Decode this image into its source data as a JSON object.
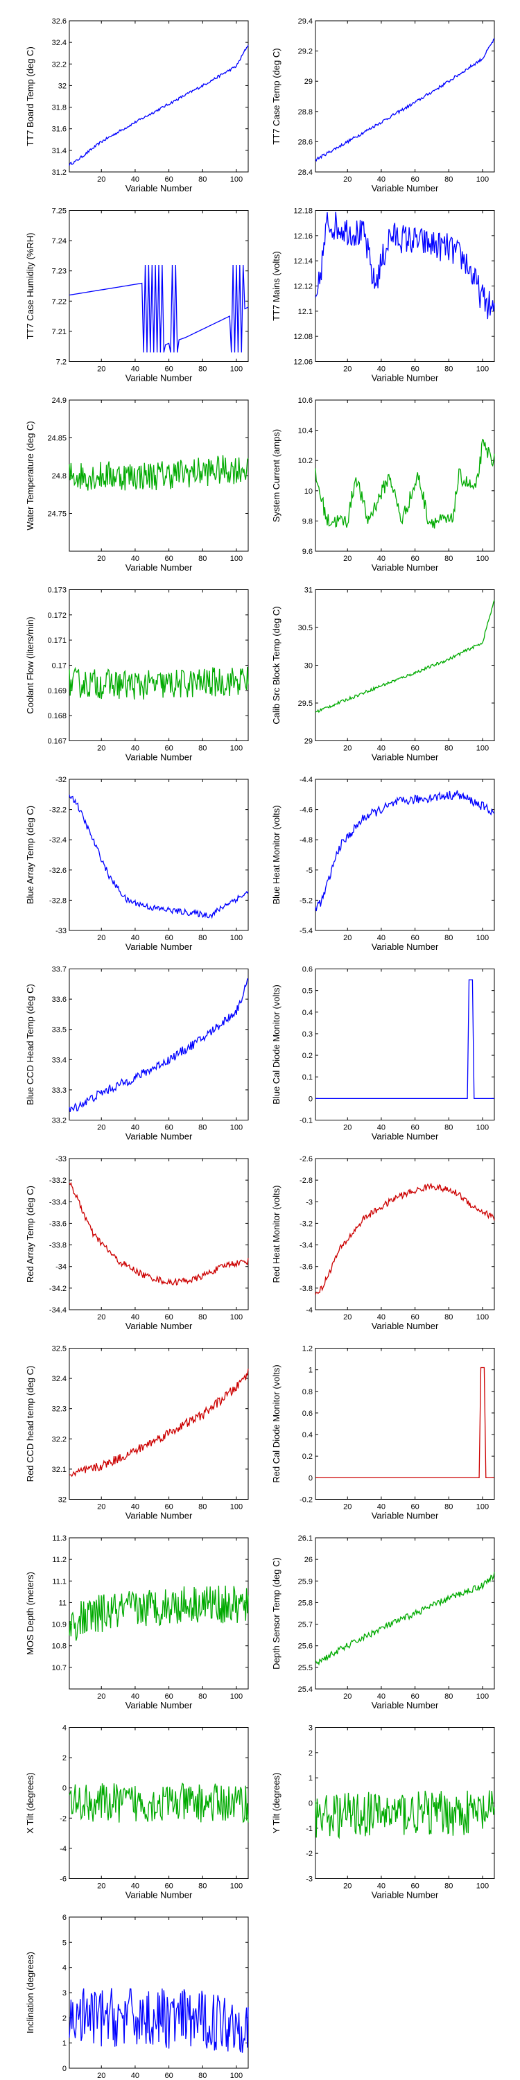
{
  "colors": {
    "blue": "#0000ff",
    "green": "#00aa00",
    "red": "#cc0000"
  },
  "chart_data": [
    {
      "type": "line",
      "ylabel": "TT7 Board Temp (deg C)",
      "xlabel": "Variable Number",
      "xlim": [
        1,
        107
      ],
      "ylim": [
        31.2,
        32.6
      ],
      "xticks": [
        20,
        40,
        60,
        80,
        100
      ],
      "yticks": [
        "31.2",
        "31.4",
        "31.6",
        "31.8",
        "32",
        "32.2",
        "32.4",
        "32.6"
      ],
      "color": "blue",
      "shape": "rampup",
      "noise": 0.012,
      "curve": [
        [
          1,
          31.27
        ],
        [
          5,
          31.3
        ],
        [
          20,
          31.48
        ],
        [
          40,
          31.66
        ],
        [
          60,
          31.83
        ],
        [
          80,
          32.0
        ],
        [
          100,
          32.18
        ],
        [
          107,
          32.38
        ]
      ]
    },
    {
      "type": "line",
      "ylabel": "TT7 Case Temp (deg C)",
      "xlabel": "Variable Number",
      "xlim": [
        1,
        107
      ],
      "ylim": [
        28.4,
        29.4
      ],
      "xticks": [
        20,
        40,
        60,
        80,
        100
      ],
      "yticks": [
        "28.4",
        "28.6",
        "28.8",
        "29",
        "29.2",
        "29.4"
      ],
      "color": "blue",
      "shape": "line",
      "noise": 0.01,
      "curve": [
        [
          1,
          28.48
        ],
        [
          20,
          28.6
        ],
        [
          40,
          28.73
        ],
        [
          60,
          28.86
        ],
        [
          80,
          29.0
        ],
        [
          100,
          29.15
        ],
        [
          107,
          29.28
        ]
      ]
    },
    {
      "type": "line",
      "ylabel": "TT7 Case Humidity (%RH)",
      "xlabel": "Variable Number",
      "xlim": [
        1,
        107
      ],
      "ylim": [
        7.2,
        7.25
      ],
      "xticks": [
        20,
        40,
        60,
        80,
        100
      ],
      "yticks": [
        "7.2",
        "7.21",
        "7.22",
        "7.23",
        "7.24",
        "7.25"
      ],
      "color": "blue",
      "shape": "square",
      "noise": 0,
      "curve": [
        [
          1,
          7.222
        ],
        [
          45,
          7.226
        ],
        [
          50,
          7.204
        ],
        [
          70,
          7.208
        ],
        [
          107,
          7.218
        ]
      ]
    },
    {
      "type": "line",
      "ylabel": "TT7 Mains  (volts)",
      "xlabel": "Variable Number",
      "xlim": [
        1,
        107
      ],
      "ylim": [
        12.06,
        12.18
      ],
      "xticks": [
        20,
        40,
        60,
        80,
        100
      ],
      "yticks": [
        "12.06",
        "12.08",
        "12.1",
        "12.12",
        "12.14",
        "12.16",
        "12.18"
      ],
      "color": "blue",
      "shape": "noisy",
      "noise": 0.012,
      "curve": [
        [
          1,
          12.1
        ],
        [
          8,
          12.17
        ],
        [
          30,
          12.16
        ],
        [
          36,
          12.12
        ],
        [
          45,
          12.16
        ],
        [
          80,
          12.15
        ],
        [
          90,
          12.14
        ],
        [
          100,
          12.11
        ],
        [
          107,
          12.1
        ]
      ]
    },
    {
      "type": "line",
      "ylabel": "Water Temperature (deg C)",
      "xlabel": "Variable Number",
      "xlim": [
        1,
        107
      ],
      "ylim": [
        24.7,
        24.9
      ],
      "xticks": [
        20,
        40,
        60,
        80,
        100
      ],
      "yticks": [
        "24.75",
        "24.8",
        "24.85",
        "24.9"
      ],
      "color": "green",
      "shape": "noisy",
      "noise": 0.02,
      "curve": [
        [
          1,
          24.8
        ],
        [
          50,
          24.8
        ],
        [
          107,
          24.81
        ]
      ]
    },
    {
      "type": "line",
      "ylabel": "System Current (amps)",
      "xlabel": "Variable Number",
      "xlim": [
        1,
        107
      ],
      "ylim": [
        9.6,
        10.6
      ],
      "xticks": [
        20,
        40,
        60,
        80,
        100
      ],
      "yticks": [
        "9.6",
        "9.8",
        "10",
        "10.2",
        "10.4",
        "10.6"
      ],
      "color": "green",
      "shape": "noisy",
      "noise": 0.05,
      "curve": [
        [
          1,
          10.1
        ],
        [
          8,
          9.8
        ],
        [
          20,
          9.8
        ],
        [
          25,
          10.1
        ],
        [
          32,
          9.8
        ],
        [
          45,
          10.1
        ],
        [
          52,
          9.8
        ],
        [
          62,
          10.1
        ],
        [
          68,
          9.8
        ],
        [
          82,
          9.8
        ],
        [
          86,
          10.1
        ],
        [
          96,
          10.0
        ],
        [
          100,
          10.3
        ],
        [
          107,
          10.2
        ]
      ]
    },
    {
      "type": "line",
      "ylabel": "Coolant Flow (liters/min)",
      "xlabel": "Variable Number",
      "xlim": [
        1,
        107
      ],
      "ylim": [
        0.167,
        0.173
      ],
      "xticks": [
        20,
        40,
        60,
        80,
        100
      ],
      "yticks": [
        "0.167",
        "0.168",
        "0.169",
        "0.17",
        "0.171",
        "0.172",
        "0.173"
      ],
      "color": "green",
      "shape": "noisy",
      "noise": 0.0006,
      "curve": [
        [
          1,
          0.1693
        ],
        [
          50,
          0.1692
        ],
        [
          107,
          0.1694
        ]
      ]
    },
    {
      "type": "line",
      "ylabel": "Calib Src Block Temp (deg C)",
      "xlabel": "Variable Number",
      "xlim": [
        1,
        107
      ],
      "ylim": [
        29,
        31
      ],
      "xticks": [
        20,
        40,
        60,
        80,
        100
      ],
      "yticks": [
        "29",
        "29.5",
        "30",
        "30.5",
        "31"
      ],
      "color": "green",
      "shape": "rampup",
      "noise": 0.02,
      "curve": [
        [
          1,
          29.38
        ],
        [
          20,
          29.55
        ],
        [
          40,
          29.73
        ],
        [
          60,
          29.9
        ],
        [
          80,
          30.08
        ],
        [
          100,
          30.3
        ],
        [
          103,
          30.55
        ],
        [
          107,
          30.85
        ]
      ]
    },
    {
      "type": "line",
      "ylabel": "Blue Array Temp (deg C)",
      "xlabel": "Variable Number",
      "xlim": [
        1,
        107
      ],
      "ylim": [
        -33,
        -32
      ],
      "xticks": [
        20,
        40,
        60,
        80,
        100
      ],
      "yticks": [
        "-33",
        "-32.8",
        "-32.6",
        "-32.4",
        "-32.2",
        "-32"
      ],
      "color": "blue",
      "shape": "curve",
      "noise": 0.02,
      "curve": [
        [
          1,
          -32.1
        ],
        [
          5,
          -32.15
        ],
        [
          15,
          -32.4
        ],
        [
          25,
          -32.65
        ],
        [
          35,
          -32.8
        ],
        [
          50,
          -32.85
        ],
        [
          70,
          -32.88
        ],
        [
          85,
          -32.9
        ],
        [
          95,
          -32.82
        ],
        [
          107,
          -32.75
        ]
      ]
    },
    {
      "type": "line",
      "ylabel": "Blue Heat Monitor (volts)",
      "xlabel": "Variable Number",
      "xlim": [
        1,
        107
      ],
      "ylim": [
        -5.4,
        -4.4
      ],
      "xticks": [
        20,
        40,
        60,
        80,
        100
      ],
      "yticks": [
        "-5.4",
        "-5.2",
        "-5",
        "-4.8",
        "-4.6",
        "-4.4"
      ],
      "color": "blue",
      "shape": "curve",
      "noise": 0.03,
      "curve": [
        [
          1,
          -5.25
        ],
        [
          5,
          -5.2
        ],
        [
          15,
          -4.85
        ],
        [
          30,
          -4.65
        ],
        [
          50,
          -4.55
        ],
        [
          70,
          -4.52
        ],
        [
          85,
          -4.5
        ],
        [
          95,
          -4.55
        ],
        [
          107,
          -4.62
        ]
      ]
    },
    {
      "type": "line",
      "ylabel": "Blue CCD Head Temp (deg C)",
      "xlabel": "Variable Number",
      "xlim": [
        1,
        107
      ],
      "ylim": [
        33.2,
        33.7
      ],
      "xticks": [
        20,
        40,
        60,
        80,
        100
      ],
      "yticks": [
        "33.2",
        "33.3",
        "33.4",
        "33.5",
        "33.6",
        "33.7"
      ],
      "color": "blue",
      "shape": "rampup",
      "noise": 0.015,
      "curve": [
        [
          1,
          33.23
        ],
        [
          20,
          33.29
        ],
        [
          40,
          33.34
        ],
        [
          60,
          33.4
        ],
        [
          80,
          33.47
        ],
        [
          100,
          33.56
        ],
        [
          107,
          33.66
        ]
      ]
    },
    {
      "type": "line",
      "ylabel": "Blue Cal Diode Monitor (volts)",
      "xlabel": "Variable Number",
      "xlim": [
        1,
        107
      ],
      "ylim": [
        -0.1,
        0.6
      ],
      "xticks": [
        20,
        40,
        60,
        80,
        100
      ],
      "yticks": [
        "-0.1",
        "0",
        "0.1",
        "0.2",
        "0.3",
        "0.4",
        "0.5",
        "0.6"
      ],
      "color": "blue",
      "shape": "spike",
      "noise": 0,
      "curve": [
        [
          1,
          0
        ],
        [
          91,
          0
        ],
        [
          92,
          0.55
        ],
        [
          94,
          0.55
        ],
        [
          95,
          0
        ],
        [
          107,
          0
        ]
      ]
    },
    {
      "type": "line",
      "ylabel": "Red Array Temp (deg C)",
      "xlabel": "Variable Number",
      "xlim": [
        1,
        107
      ],
      "ylim": [
        -34.4,
        -33
      ],
      "xticks": [
        20,
        40,
        60,
        80,
        100
      ],
      "yticks": [
        "-34.4",
        "-34.2",
        "-34",
        "-33.8",
        "-33.6",
        "-33.4",
        "-33.2",
        "-33"
      ],
      "color": "red",
      "shape": "curve",
      "noise": 0.03,
      "curve": [
        [
          1,
          -33.2
        ],
        [
          5,
          -33.35
        ],
        [
          15,
          -33.7
        ],
        [
          30,
          -33.95
        ],
        [
          45,
          -34.08
        ],
        [
          60,
          -34.15
        ],
        [
          75,
          -34.12
        ],
        [
          85,
          -34.05
        ],
        [
          95,
          -33.98
        ],
        [
          107,
          -33.95
        ]
      ]
    },
    {
      "type": "line",
      "ylabel": "Red Heat Monitor (volts)",
      "xlabel": "Variable Number",
      "xlim": [
        1,
        107
      ],
      "ylim": [
        -4,
        -2.6
      ],
      "xticks": [
        20,
        40,
        60,
        80,
        100
      ],
      "yticks": [
        "-4",
        "-3.8",
        "-3.6",
        "-3.4",
        "-3.2",
        "-3",
        "-2.8",
        "-2.6"
      ],
      "color": "red",
      "shape": "curve",
      "noise": 0.03,
      "curve": [
        [
          1,
          -3.85
        ],
        [
          5,
          -3.8
        ],
        [
          15,
          -3.45
        ],
        [
          30,
          -3.15
        ],
        [
          50,
          -2.95
        ],
        [
          70,
          -2.85
        ],
        [
          85,
          -2.92
        ],
        [
          95,
          -3.05
        ],
        [
          107,
          -3.15
        ]
      ]
    },
    {
      "type": "line",
      "ylabel": "Red CCD head temp (deg C)",
      "xlabel": "Variable Number",
      "xlim": [
        1,
        107
      ],
      "ylim": [
        32,
        32.5
      ],
      "xticks": [
        20,
        40,
        60,
        80,
        100
      ],
      "yticks": [
        "32",
        "32.1",
        "32.2",
        "32.3",
        "32.4",
        "32.5"
      ],
      "color": "red",
      "shape": "rampup",
      "noise": 0.015,
      "curve": [
        [
          1,
          32.08
        ],
        [
          20,
          32.11
        ],
        [
          40,
          32.16
        ],
        [
          60,
          32.22
        ],
        [
          80,
          32.28
        ],
        [
          100,
          32.37
        ],
        [
          107,
          32.42
        ]
      ]
    },
    {
      "type": "line",
      "ylabel": "Red Cal Diode Monitor (volts)",
      "xlabel": "Variable Number",
      "xlim": [
        1,
        107
      ],
      "ylim": [
        -0.2,
        1.2
      ],
      "xticks": [
        20,
        40,
        60,
        80,
        100
      ],
      "yticks": [
        "-0.2",
        "0",
        "0.2",
        "0.4",
        "0.6",
        "0.8",
        "1",
        "1.2"
      ],
      "color": "red",
      "shape": "spike",
      "noise": 0,
      "curve": [
        [
          1,
          0
        ],
        [
          98,
          0
        ],
        [
          99,
          1.02
        ],
        [
          101,
          1.02
        ],
        [
          102,
          0
        ],
        [
          107,
          0
        ]
      ]
    },
    {
      "type": "line",
      "ylabel": "MOS Depth  (meters)",
      "xlabel": "Variable Number",
      "xlim": [
        1,
        107
      ],
      "ylim": [
        10.6,
        11.3
      ],
      "xticks": [
        20,
        40,
        60,
        80,
        100
      ],
      "yticks": [
        "10.7",
        "10.8",
        "10.9",
        "11",
        "11.1",
        "11.2",
        "11.3"
      ],
      "color": "green",
      "shape": "noisy",
      "noise": 0.09,
      "curve": [
        [
          1,
          10.9
        ],
        [
          20,
          10.95
        ],
        [
          50,
          10.98
        ],
        [
          80,
          11.0
        ],
        [
          107,
          10.98
        ]
      ]
    },
    {
      "type": "line",
      "ylabel": "Depth Sensor Temp (deg C)",
      "xlabel": "Variable Number",
      "xlim": [
        1,
        107
      ],
      "ylim": [
        25.4,
        26.1
      ],
      "xticks": [
        20,
        40,
        60,
        80,
        100
      ],
      "yticks": [
        "25.4",
        "25.5",
        "25.6",
        "25.7",
        "25.8",
        "25.9",
        "26",
        "26.1"
      ],
      "color": "green",
      "shape": "line",
      "noise": 0.015,
      "curve": [
        [
          1,
          25.52
        ],
        [
          20,
          25.6
        ],
        [
          40,
          25.68
        ],
        [
          60,
          25.75
        ],
        [
          80,
          25.82
        ],
        [
          100,
          25.88
        ],
        [
          107,
          25.93
        ]
      ]
    },
    {
      "type": "line",
      "ylabel": "X Tilt  (degrees)",
      "xlabel": "Variable Number",
      "xlim": [
        1,
        107
      ],
      "ylim": [
        -6,
        4
      ],
      "xticks": [
        20,
        40,
        60,
        80,
        100
      ],
      "yticks": [
        "-6",
        "-4",
        "-2",
        "0",
        "2",
        "4"
      ],
      "color": "green",
      "shape": "noisy",
      "noise": 1.3,
      "curve": [
        [
          1,
          -1
        ],
        [
          50,
          -1
        ],
        [
          107,
          -1
        ]
      ]
    },
    {
      "type": "line",
      "ylabel": "Y Tilt  (degrees)",
      "xlabel": "Variable Number",
      "xlim": [
        1,
        107
      ],
      "ylim": [
        -3,
        3
      ],
      "xticks": [
        20,
        40,
        60,
        80,
        100
      ],
      "yticks": [
        "-3",
        "-2",
        "-1",
        "0",
        "1",
        "2",
        "3"
      ],
      "color": "green",
      "shape": "noisy",
      "noise": 0.9,
      "curve": [
        [
          1,
          -0.5
        ],
        [
          50,
          -0.4
        ],
        [
          107,
          -0.4
        ]
      ]
    },
    {
      "type": "line",
      "ylabel": "Inclination  (degrees)",
      "xlabel": "Variable Number",
      "xlim": [
        1,
        107
      ],
      "ylim": [
        0,
        6
      ],
      "xticks": [
        20,
        40,
        60,
        80,
        100
      ],
      "yticks": [
        "0",
        "1",
        "2",
        "3",
        "4",
        "5",
        "6"
      ],
      "color": "blue",
      "shape": "noisy",
      "noise": 1.2,
      "curve": [
        [
          1,
          2
        ],
        [
          50,
          2
        ],
        [
          107,
          1.8
        ]
      ]
    }
  ]
}
